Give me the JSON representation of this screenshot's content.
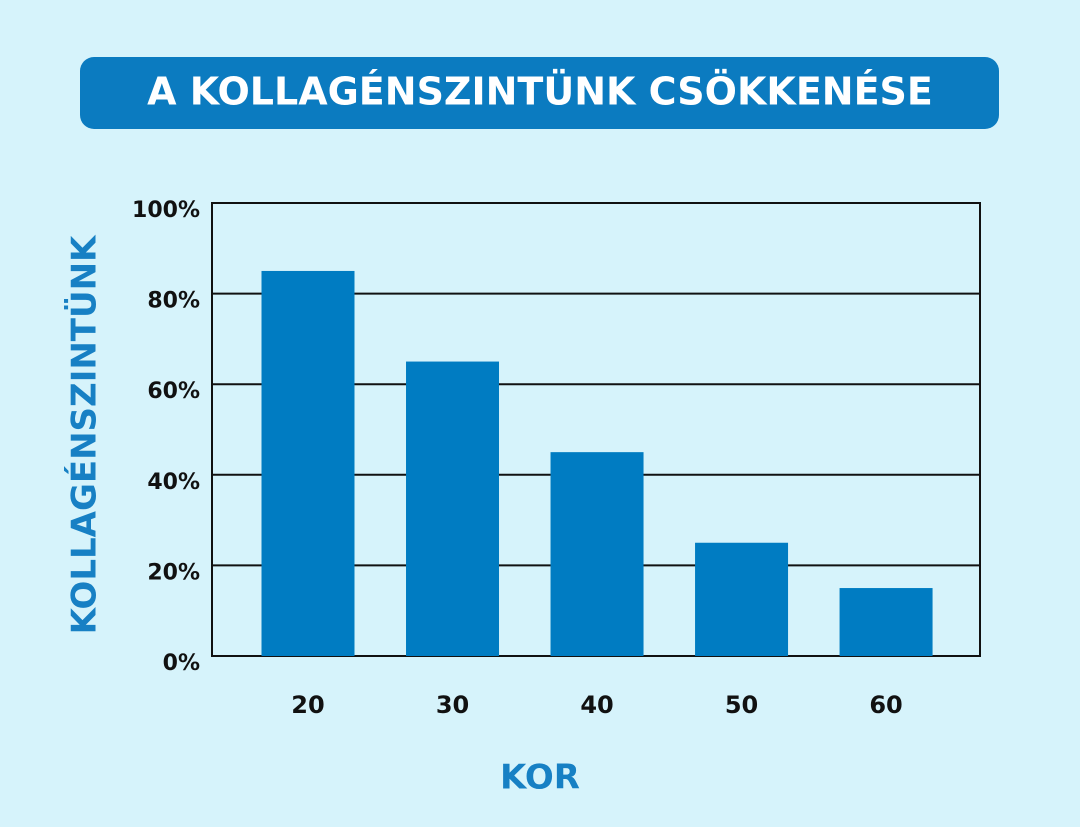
{
  "chart_data": {
    "type": "bar",
    "title": "A KOLLAGÉNSZINTÜNK CSÖKKENÉSE",
    "y_label": "KOLLAGÉNSZINTÜNK",
    "x_label": "KOR",
    "categories": [
      "20",
      "30",
      "40",
      "50",
      "60"
    ],
    "values": [
      85,
      65,
      45,
      25,
      15
    ],
    "color": "#007cc2",
    "ylim": [
      0,
      100
    ],
    "yticks": [
      {
        "value": 0,
        "label": "0%"
      },
      {
        "value": 20,
        "label": "20%"
      },
      {
        "value": 40,
        "label": "40%"
      },
      {
        "value": 60,
        "label": "60%"
      },
      {
        "value": 80,
        "label": "80%"
      },
      {
        "value": 100,
        "label": "100%"
      }
    ],
    "grid": true
  }
}
